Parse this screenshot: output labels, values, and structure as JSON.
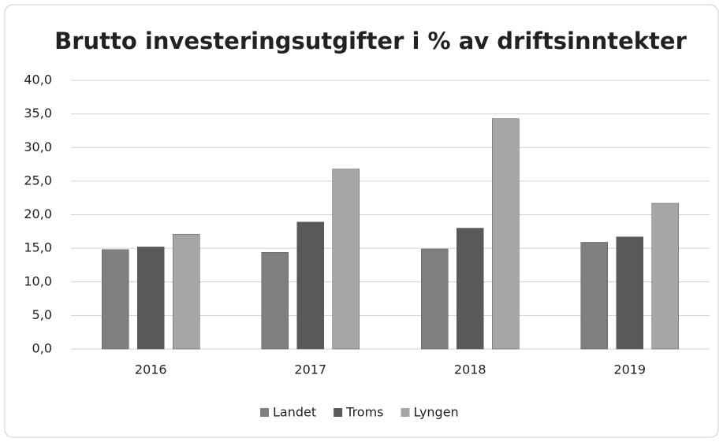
{
  "chart_data": {
    "type": "bar",
    "title": "Brutto investeringsutgifter i % av driftsinntekter",
    "categories": [
      "2016",
      "2017",
      "2018",
      "2019"
    ],
    "series": [
      {
        "name": "Landet",
        "color": "#7f7f7f",
        "values": [
          14.8,
          14.4,
          14.9,
          15.9
        ]
      },
      {
        "name": "Troms",
        "color": "#595959",
        "values": [
          15.2,
          18.9,
          18.0,
          16.7
        ]
      },
      {
        "name": "Lyngen",
        "color": "#a6a6a6",
        "values": [
          17.1,
          26.8,
          34.3,
          21.7
        ]
      }
    ],
    "ylim": [
      0,
      40
    ],
    "yticks": [
      {
        "value": 0,
        "label": "0,0"
      },
      {
        "value": 5,
        "label": "5,0"
      },
      {
        "value": 10,
        "label": "10,0"
      },
      {
        "value": 15,
        "label": "15,0"
      },
      {
        "value": 20,
        "label": "20,0"
      },
      {
        "value": 25,
        "label": "25,0"
      },
      {
        "value": 30,
        "label": "30,0"
      },
      {
        "value": 35,
        "label": "35,0"
      },
      {
        "value": 40,
        "label": "40,0"
      }
    ],
    "grid": true,
    "legend": "bottom"
  }
}
